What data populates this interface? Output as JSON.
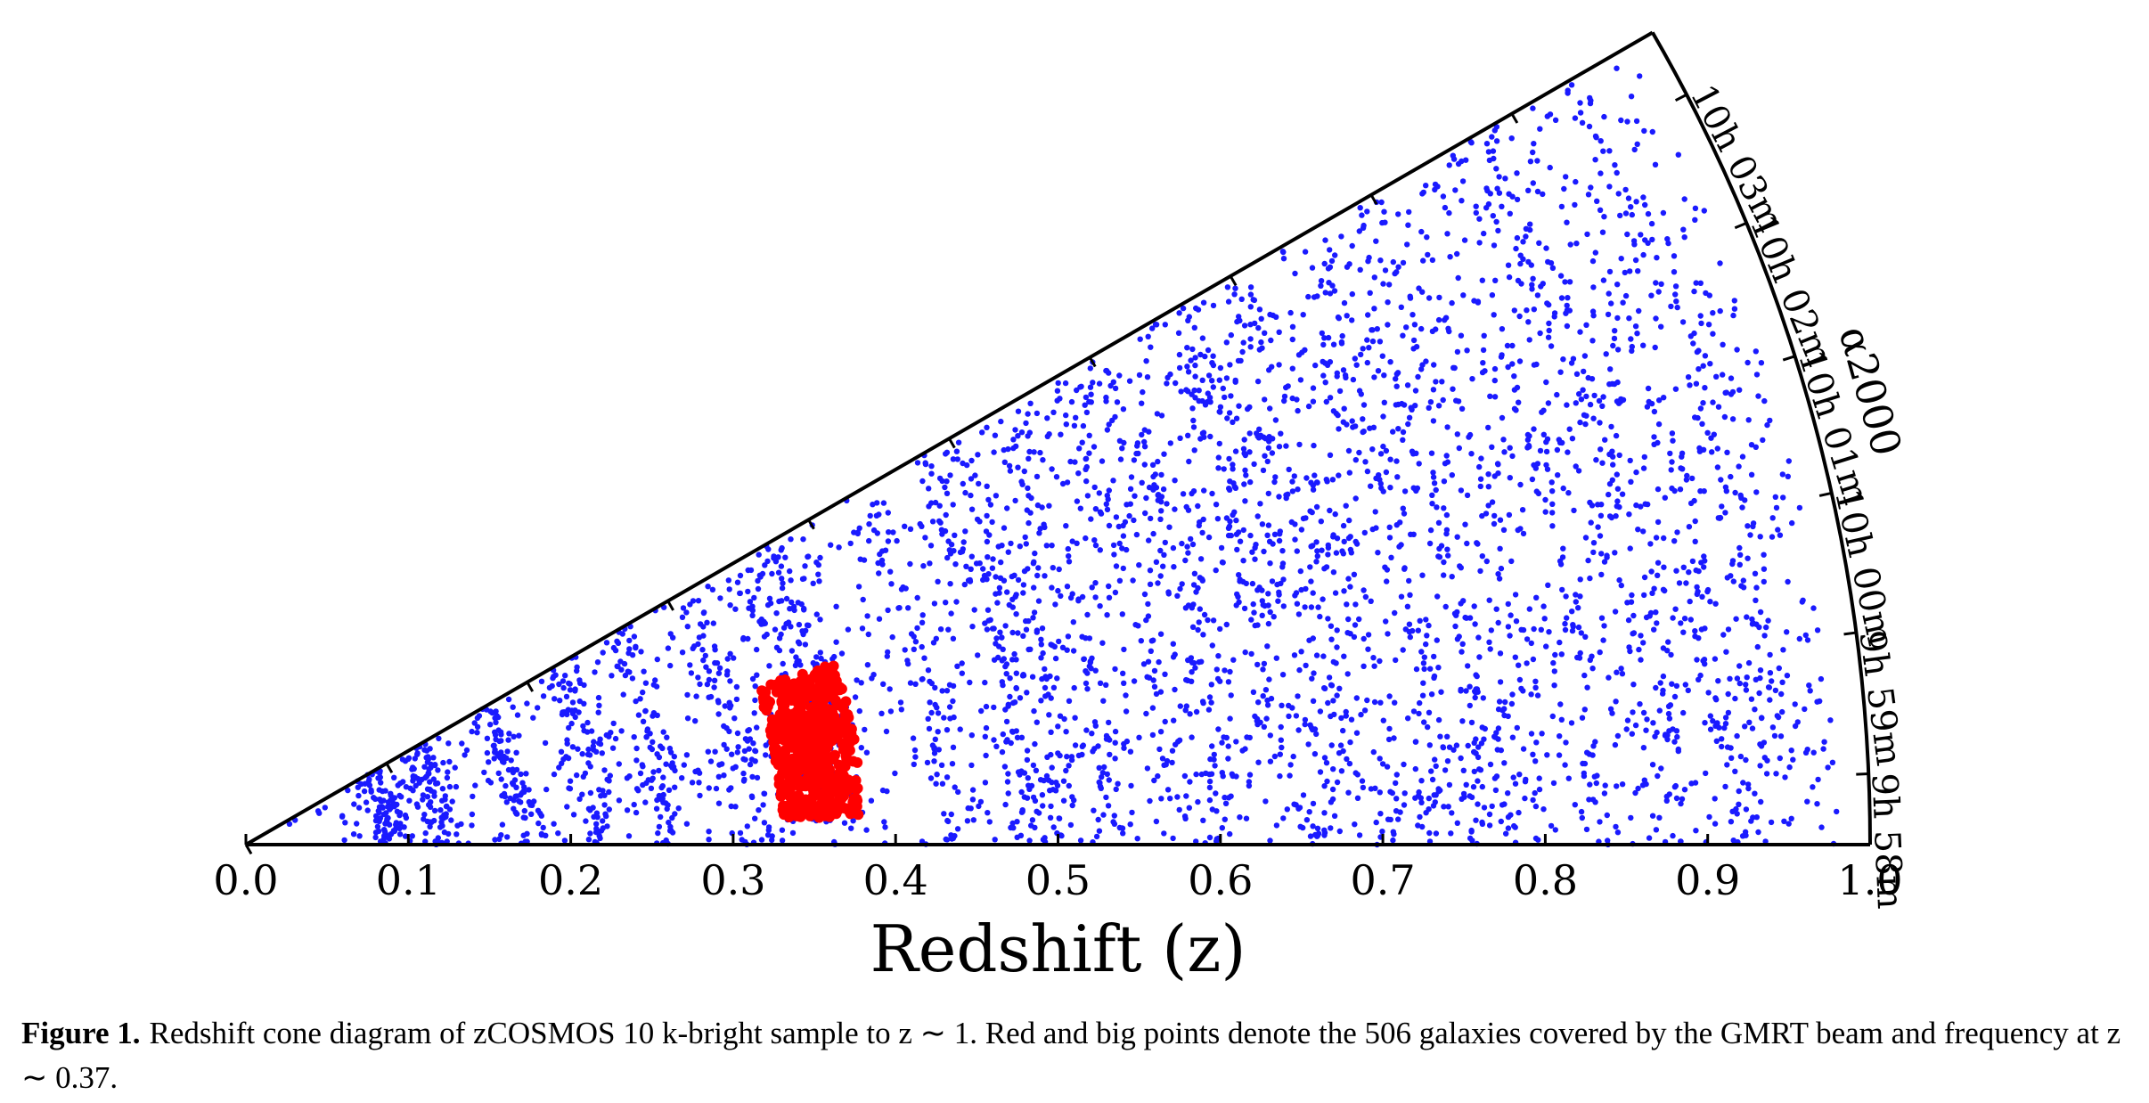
{
  "chart_data": {
    "type": "scatter",
    "subtype": "redshift cone diagram",
    "xlabel": "Redshift (z)",
    "xlim": [
      0.0,
      1.0
    ],
    "x_ticks": [
      "0.0",
      "0.1",
      "0.2",
      "0.3",
      "0.4",
      "0.5",
      "0.6",
      "0.7",
      "0.8",
      "0.9",
      "1.0"
    ],
    "ra_axis_label": "α2000",
    "ra_axis_ticks": [
      "10h 03m",
      "10h 02m",
      "10h 01m",
      "10h 00m",
      "9h 59m",
      "9h 58m"
    ],
    "grid": false,
    "series": [
      {
        "color": "#1a1aff",
        "marker_size": "small",
        "density_bands_z": [
          0.09,
          0.12,
          0.17,
          0.22,
          0.26,
          0.31,
          0.35,
          0.37,
          0.43,
          0.48,
          0.5,
          0.53,
          0.57,
          0.6,
          0.64,
          0.66,
          0.68,
          0.7,
          0.73,
          0.76,
          0.79,
          0.83,
          0.86,
          0.88,
          0.91,
          0.94
        ],
        "z_range": [
          0.0,
          0.98
        ]
      },
      {
        "color": "#ff0000",
        "marker_size": "big",
        "count": 506,
        "z_center": 0.37,
        "z_range": [
          0.33,
          0.38
        ]
      }
    ]
  },
  "caption": {
    "label": "Figure 1.",
    "text": "Redshift cone diagram of zCOSMOS 10 k-bright sample to z ∼ 1. Red and big points denote the 506 galaxies covered by the GMRT beam and frequency at z ∼ 0.37."
  }
}
